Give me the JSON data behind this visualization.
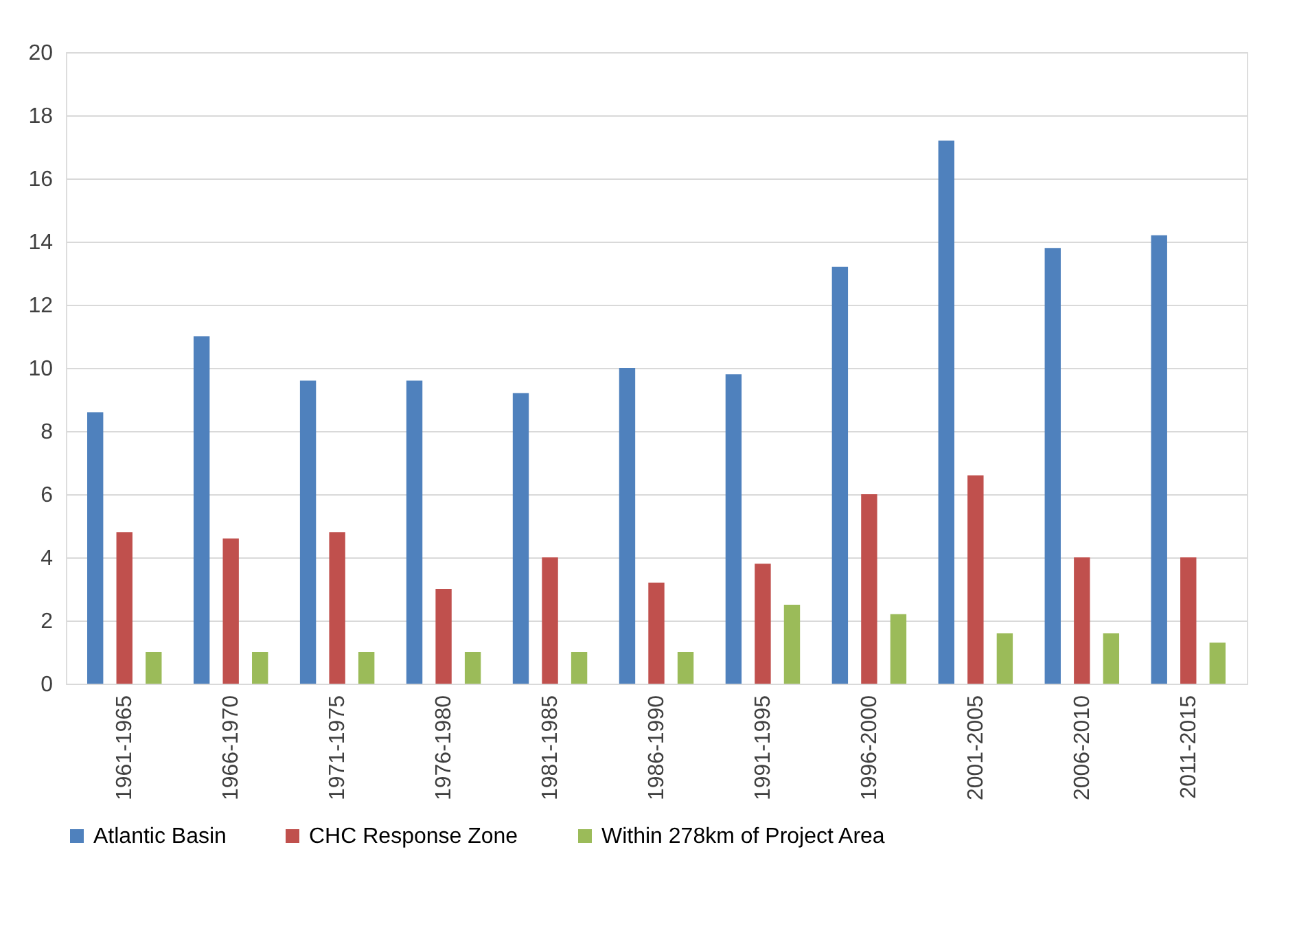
{
  "chart_data": {
    "type": "bar",
    "categories": [
      "1961-1965",
      "1966-1970",
      "1971-1975",
      "1976-1980",
      "1981-1985",
      "1986-1990",
      "1991-1995",
      "1996-2000",
      "2001-2005",
      "2006-2010",
      "2011-2015"
    ],
    "series": [
      {
        "name": "Atlantic Basin",
        "color": "#4f81bd",
        "values": [
          8.6,
          11,
          9.6,
          9.6,
          9.2,
          10,
          9.8,
          13.2,
          17.2,
          13.8,
          14.2
        ]
      },
      {
        "name": "CHC Response Zone",
        "color": "#c0504d",
        "values": [
          4.8,
          4.6,
          4.8,
          3.0,
          4.0,
          3.2,
          3.8,
          6.0,
          6.6,
          4.0,
          4.0
        ]
      },
      {
        "name": "Within 278km of Project Area",
        "color": "#9bbb59",
        "values": [
          1,
          1,
          1,
          1,
          1,
          1,
          2.5,
          2.2,
          1.6,
          1.6,
          1.3
        ]
      }
    ],
    "ylim": [
      0,
      20
    ],
    "yticks": [
      0,
      2,
      4,
      6,
      8,
      10,
      12,
      14,
      16,
      18,
      20
    ],
    "grid": "y",
    "legend": "bottom"
  }
}
